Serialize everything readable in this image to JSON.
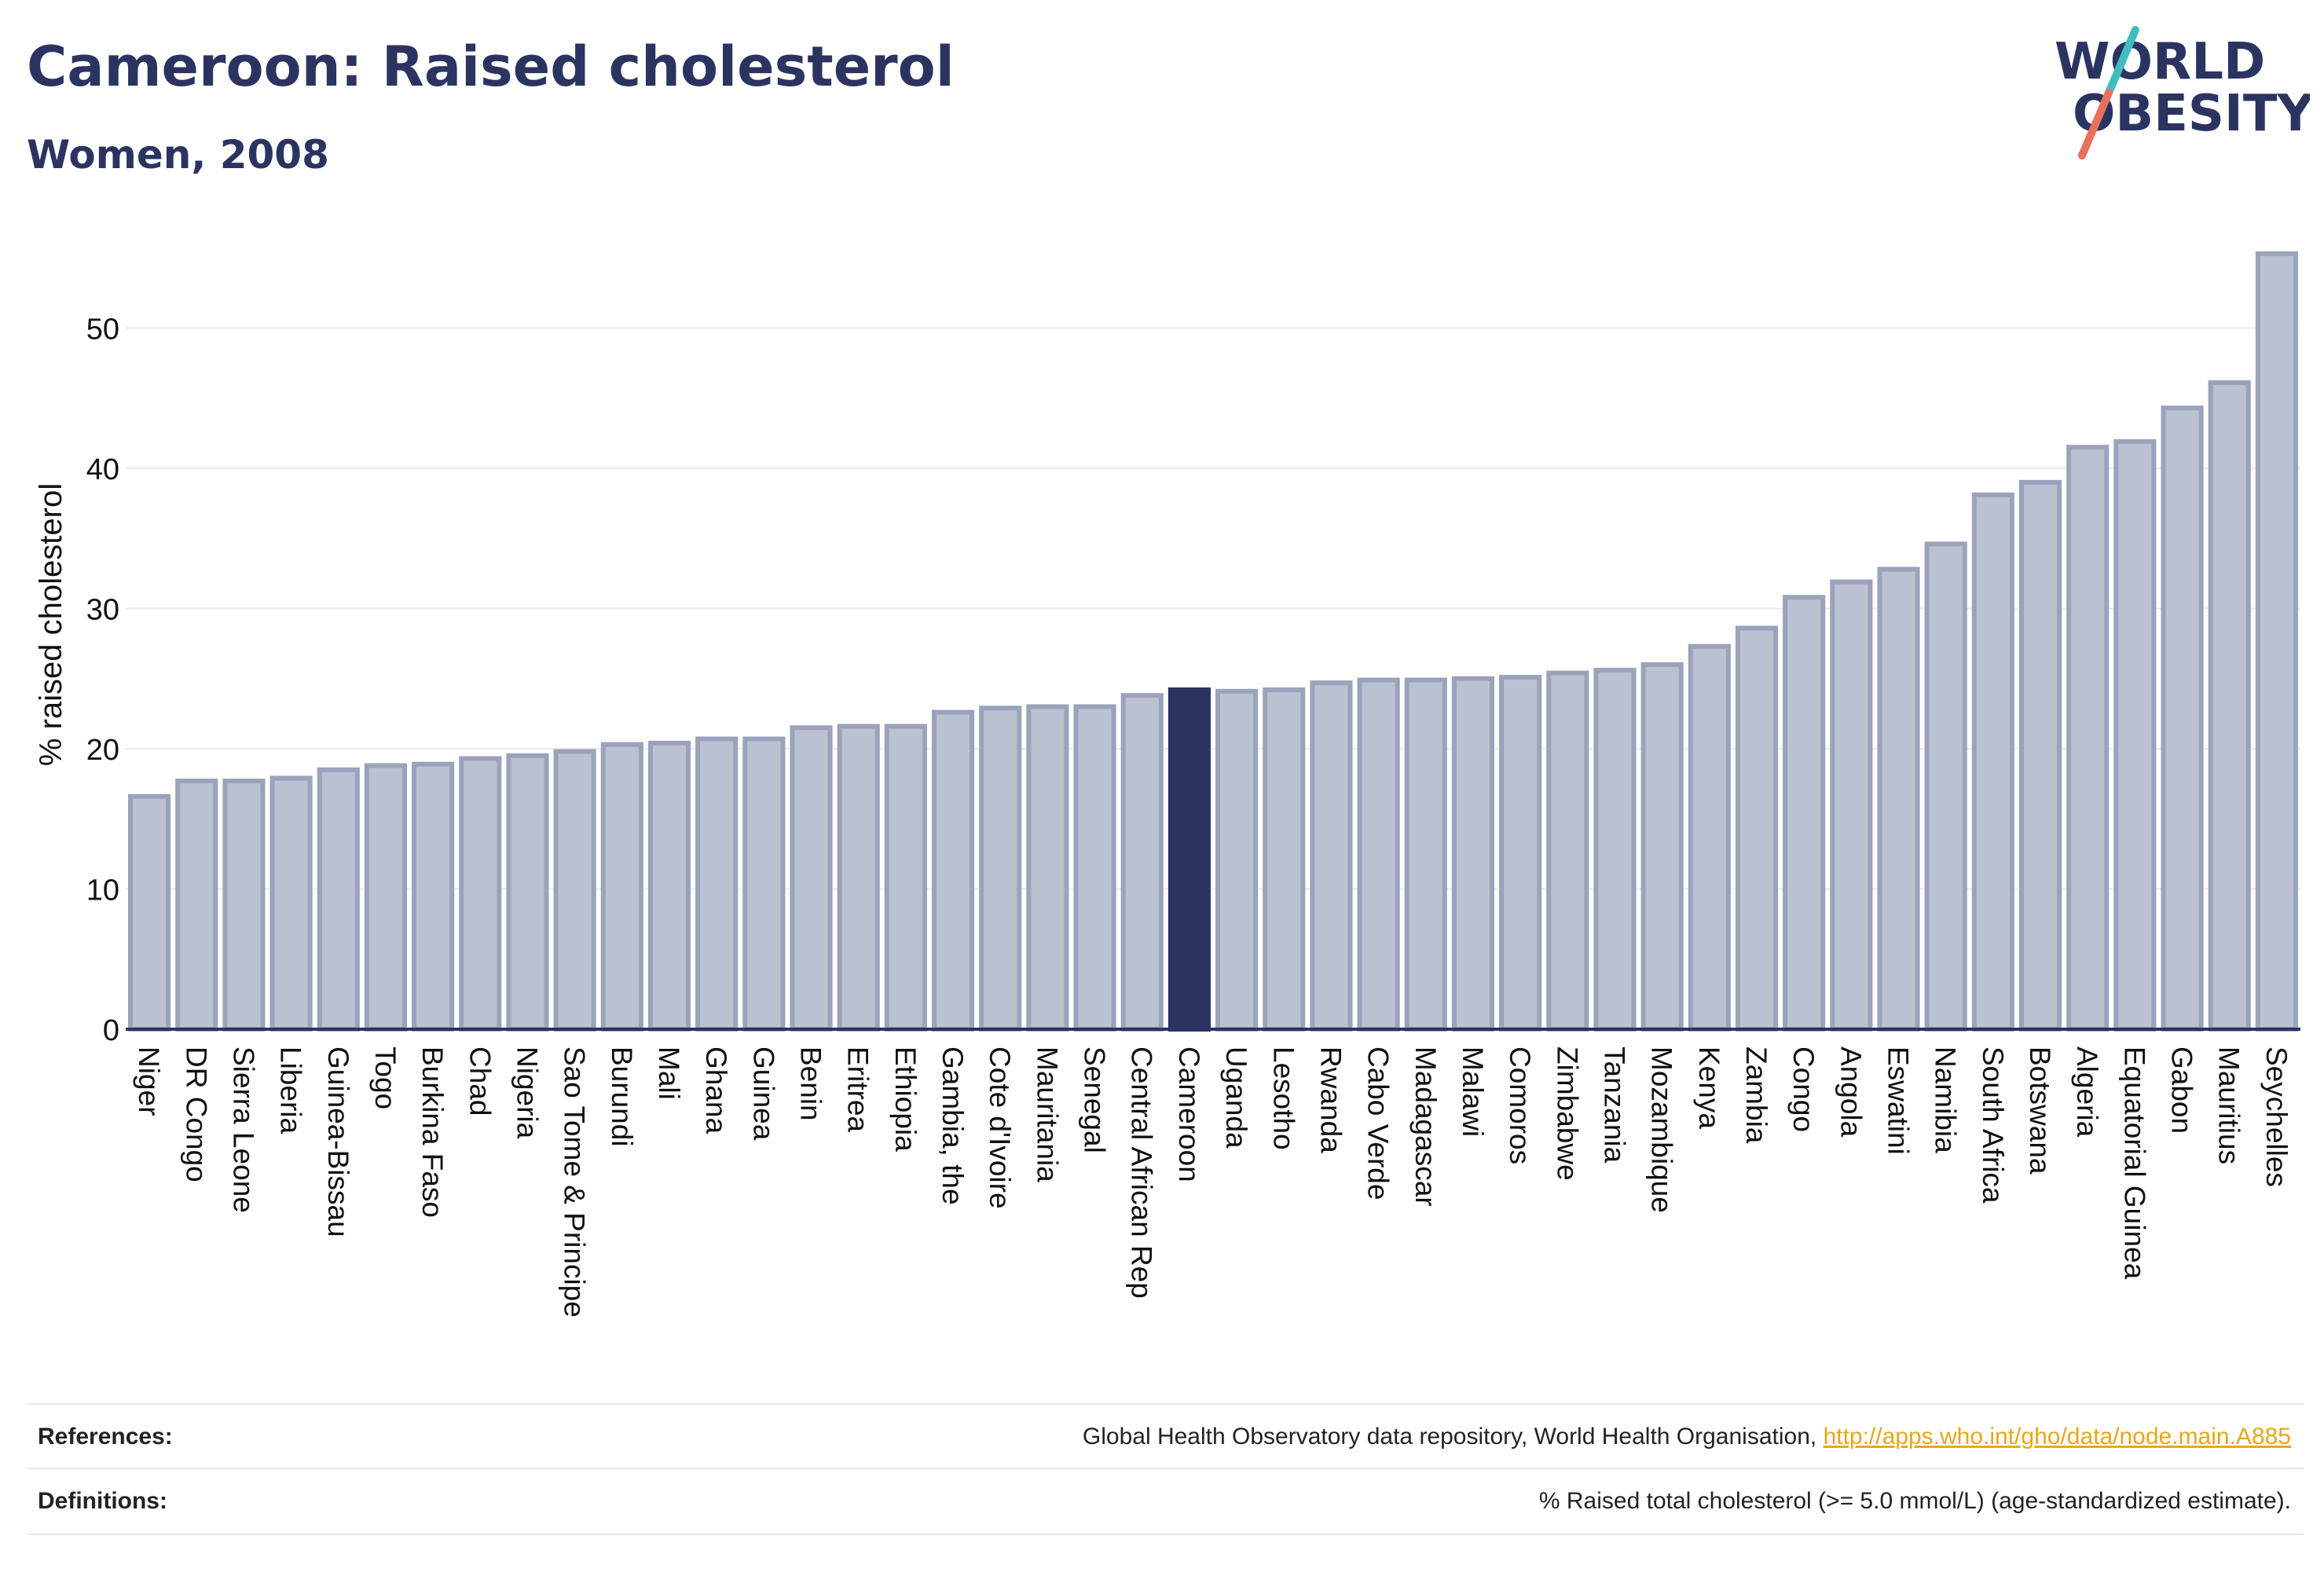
{
  "header": {
    "title": "Cameroon: Raised cholesterol",
    "subtitle": "Women, 2008"
  },
  "logo": {
    "line1": "WORLD",
    "line2": "OBESITY",
    "colors": {
      "text": "#2b3461",
      "slash_teal": "#3fbdc1",
      "slash_coral": "#e8715e"
    }
  },
  "colors": {
    "bar_fill": "#bcc1d1",
    "bar_stroke": "#9ba2bb",
    "highlight_fill": "#2b3461",
    "axis": "#2b3461",
    "grid": "#e9ebf1"
  },
  "chart_data": {
    "type": "bar",
    "title": "",
    "xlabel": "",
    "ylabel": "% raised cholesterol",
    "ylim": [
      0,
      56
    ],
    "yticks": [
      0,
      10,
      20,
      30,
      40,
      50
    ],
    "grid": true,
    "highlight": "Cameroon",
    "categories": [
      "Niger",
      "DR Congo",
      "Sierra Leone",
      "Liberia",
      "Guinea-Bissau",
      "Togo",
      "Burkina Faso",
      "Chad",
      "Nigeria",
      "Sao Tome & Principe",
      "Burundi",
      "Mali",
      "Ghana",
      "Guinea",
      "Benin",
      "Eritrea",
      "Ethiopia",
      "Gambia, the",
      "Cote d'Ivoire",
      "Mauritania",
      "Senegal",
      "Central African Rep",
      "Cameroon",
      "Uganda",
      "Lesotho",
      "Rwanda",
      "Cabo Verde",
      "Madagascar",
      "Malawi",
      "Comoros",
      "Zimbabwe",
      "Tanzania",
      "Mozambique",
      "Kenya",
      "Zambia",
      "Congo",
      "Angola",
      "Eswatini",
      "Namibia",
      "South Africa",
      "Botswana",
      "Algeria",
      "Equatorial Guinea",
      "Gabon",
      "Mauritius",
      "Seychelles"
    ],
    "values": [
      16.6,
      17.7,
      17.7,
      17.9,
      18.5,
      18.8,
      18.9,
      19.3,
      19.5,
      19.8,
      20.3,
      20.4,
      20.7,
      20.7,
      21.5,
      21.6,
      21.6,
      22.6,
      22.9,
      23.0,
      23.0,
      23.8,
      24.2,
      24.1,
      24.2,
      24.7,
      24.9,
      24.9,
      25.0,
      25.1,
      25.4,
      25.6,
      26.0,
      27.3,
      28.6,
      30.8,
      31.9,
      32.8,
      34.6,
      38.1,
      39.0,
      41.5,
      41.9,
      44.3,
      46.1,
      55.3
    ]
  },
  "footer": {
    "references_label": "References:",
    "references_text": "Global Health Observatory data repository, World Health Organisation, ",
    "references_link": "http://apps.who.int/gho/data/node.main.A885",
    "definitions_label": "Definitions:",
    "definitions_text": "% Raised total cholesterol (>= 5.0 mmol/L) (age-standardized estimate)."
  }
}
